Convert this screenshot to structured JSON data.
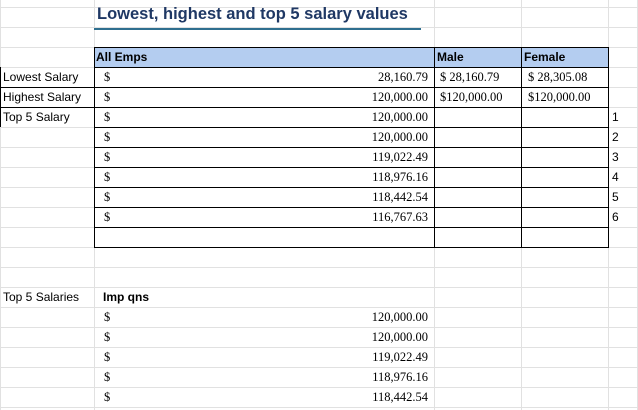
{
  "sheet": {
    "title": "Lowest, highest and top 5 salary values",
    "headers": {
      "all": "All Emps",
      "male": "Male",
      "female": "Female"
    },
    "row_labels": {
      "lowest": "Lowest Salary",
      "highest": "Highest Salary",
      "top5": "Top 5 Salary"
    },
    "currency_symbol": "$",
    "lowest": {
      "all": "28,160.79",
      "male": "$ 28,160.79",
      "female": "$ 28,305.08"
    },
    "highest": {
      "all": "120,000.00",
      "male": "$120,000.00",
      "female": "$120,000.00"
    },
    "top5_values": [
      "120,000.00",
      "120,000.00",
      "119,022.49",
      "118,976.16",
      "118,442.54",
      "116,767.63"
    ],
    "rank_numbers": [
      "1",
      "2",
      "3",
      "4",
      "5",
      "6"
    ],
    "second_block": {
      "label": "Top 5 Salaries",
      "header": "Imp qns",
      "values": [
        "120,000.00",
        "120,000.00",
        "119,022.49",
        "118,976.16",
        "118,442.54"
      ]
    },
    "colors": {
      "header_fill": "#b4cdf0",
      "title_text": "#1f3864",
      "title_rule": "#2f6f8f",
      "gridline": "#e1e1e1"
    }
  }
}
